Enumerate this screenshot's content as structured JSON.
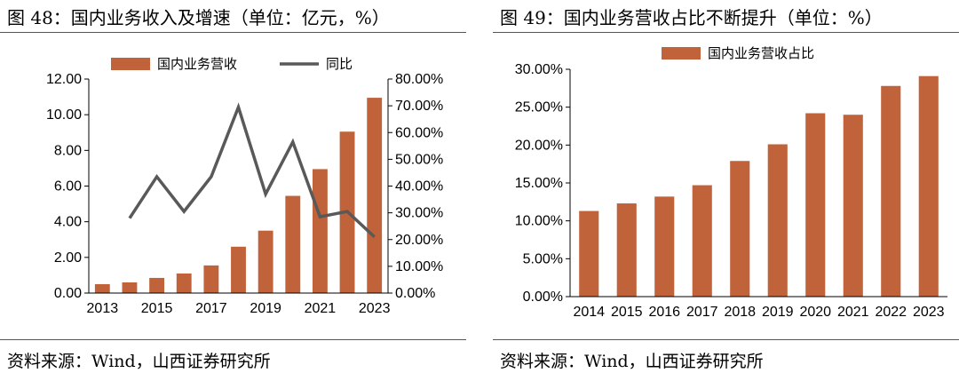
{
  "figures": [
    {
      "title": "图 48：国内业务收入及增速（单位：亿元，%）",
      "source": "资料来源：Wind，山西证券研究所",
      "colors": {
        "bar": "#C0623A",
        "line": "#595959",
        "axis": "#000000"
      },
      "chart_data": {
        "type": "bar+line",
        "categories": [
          "2013",
          "2014",
          "2015",
          "2016",
          "2017",
          "2018",
          "2019",
          "2020",
          "2021",
          "2022",
          "2023"
        ],
        "x_tick_labels": [
          "2013",
          "2015",
          "2017",
          "2019",
          "2021",
          "2023"
        ],
        "series": [
          {
            "name": "国内业务营收",
            "type": "bar",
            "axis": "left",
            "values": [
              0.5,
              0.6,
              0.85,
              1.1,
              1.55,
              2.6,
              3.5,
              5.45,
              6.95,
              9.05,
              10.95
            ]
          },
          {
            "name": "同比",
            "type": "line",
            "axis": "right",
            "values": [
              null,
              28.0,
              43.5,
              30.5,
              43.5,
              69.5,
              37.0,
              56.5,
              28.5,
              30.5,
              21.0
            ]
          }
        ],
        "y_left": {
          "ylim": [
            0,
            12
          ],
          "ticks": [
            "0.00",
            "2.00",
            "4.00",
            "6.00",
            "8.00",
            "10.00",
            "12.00"
          ]
        },
        "y_right": {
          "ylim": [
            0,
            80
          ],
          "ticks": [
            "0.00%",
            "10.00%",
            "20.00%",
            "30.00%",
            "40.00%",
            "50.00%",
            "60.00%",
            "70.00%",
            "80.00%"
          ]
        },
        "legend_position": "top",
        "grid": false
      }
    },
    {
      "title": "图 49：国内业务营收占比不断提升（单位：%）",
      "source": "资料来源：Wind，山西证券研究所",
      "colors": {
        "bar": "#C0623A",
        "axis": "#000000"
      },
      "chart_data": {
        "type": "bar",
        "categories": [
          "2014",
          "2015",
          "2016",
          "2017",
          "2018",
          "2019",
          "2020",
          "2021",
          "2022",
          "2023"
        ],
        "x_tick_labels": [
          "2014",
          "2015",
          "2016",
          "2017",
          "2018",
          "2019",
          "2020",
          "2021",
          "2022",
          "2023"
        ],
        "series": [
          {
            "name": "国内业务营收占比",
            "type": "bar",
            "axis": "left",
            "values": [
              11.3,
              12.3,
              13.2,
              14.7,
              17.9,
              20.1,
              24.2,
              24.0,
              27.8,
              29.1
            ]
          }
        ],
        "y_left": {
          "ylim": [
            0,
            30
          ],
          "ticks": [
            "0.00%",
            "5.00%",
            "10.00%",
            "15.00%",
            "20.00%",
            "25.00%",
            "30.00%"
          ]
        },
        "legend_position": "top-left",
        "grid": false
      }
    }
  ]
}
